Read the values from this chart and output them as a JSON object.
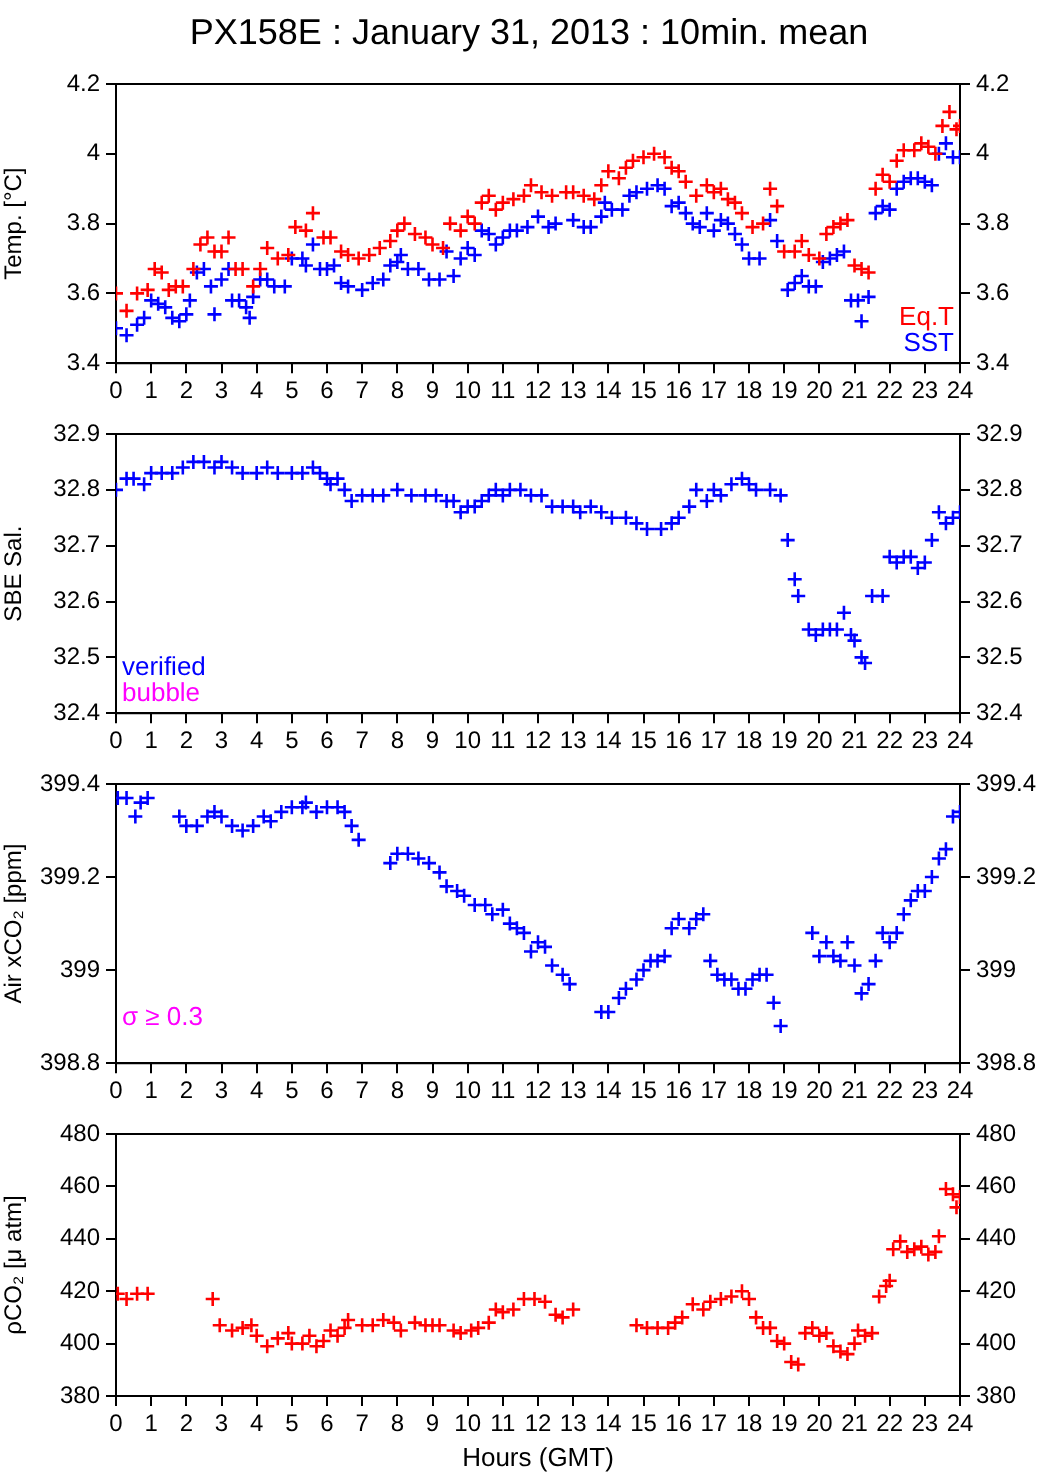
{
  "chart_data": [
    {
      "type": "scatter",
      "title": "PX158E : January 31, 2013 : 10min. mean",
      "ylabel": "Temp. [°C]",
      "xlim": [
        0,
        24
      ],
      "xticks": [
        0,
        1,
        2,
        3,
        4,
        5,
        6,
        7,
        8,
        9,
        10,
        11,
        12,
        13,
        14,
        15,
        16,
        17,
        18,
        19,
        20,
        21,
        22,
        23,
        24
      ],
      "ylim": [
        3.4,
        4.2
      ],
      "yticks": [
        3.4,
        3.6,
        3.8,
        4,
        4.2
      ],
      "y2lim": [
        3.4,
        4.2
      ],
      "y2ticks": [
        3.4,
        3.6,
        3.8,
        4,
        4.2
      ],
      "legend": "bottom right",
      "marker": "cross",
      "grid": false,
      "series": [
        {
          "name": "Eq.T",
          "color": "#ff0000",
          "x": [
            0,
            0.3,
            0.6,
            0.9,
            1.1,
            1.3,
            1.5,
            1.7,
            1.9,
            2.2,
            2.4,
            2.6,
            2.8,
            3,
            3.2,
            3.4,
            3.6,
            3.9,
            4.1,
            4.3,
            4.6,
            4.9,
            5.1,
            5.4,
            5.6,
            5.9,
            6.1,
            6.4,
            6.6,
            6.9,
            7.2,
            7.5,
            7.8,
            8,
            8.2,
            8.5,
            8.8,
            9,
            9.3,
            9.5,
            9.8,
            10,
            10.2,
            10.4,
            10.6,
            10.8,
            11,
            11.3,
            11.6,
            11.8,
            12.1,
            12.4,
            12.8,
            13,
            13.3,
            13.6,
            13.8,
            14,
            14.3,
            14.5,
            14.7,
            15,
            15.3,
            15.6,
            15.8,
            16,
            16.2,
            16.5,
            16.8,
            17,
            17.2,
            17.4,
            17.6,
            17.8,
            18.1,
            18.4,
            18.6,
            18.8,
            19,
            19.3,
            19.5,
            19.7,
            20,
            20.2,
            20.4,
            20.6,
            20.8,
            21,
            21.2,
            21.4,
            21.6,
            21.8,
            22,
            22.2,
            22.4,
            22.7,
            22.9,
            23.1,
            23.3,
            23.5,
            23.7,
            23.9,
            24
          ],
          "values": [
            3.6,
            3.55,
            3.6,
            3.61,
            3.67,
            3.66,
            3.61,
            3.62,
            3.62,
            3.67,
            3.74,
            3.76,
            3.72,
            3.72,
            3.76,
            3.67,
            3.67,
            3.62,
            3.67,
            3.73,
            3.7,
            3.71,
            3.79,
            3.78,
            3.83,
            3.76,
            3.76,
            3.72,
            3.71,
            3.7,
            3.71,
            3.73,
            3.75,
            3.78,
            3.8,
            3.77,
            3.76,
            3.74,
            3.73,
            3.8,
            3.78,
            3.82,
            3.8,
            3.86,
            3.88,
            3.84,
            3.86,
            3.87,
            3.88,
            3.91,
            3.89,
            3.88,
            3.89,
            3.89,
            3.88,
            3.87,
            3.91,
            3.95,
            3.93,
            3.96,
            3.98,
            3.99,
            4,
            3.99,
            3.96,
            3.95,
            3.92,
            3.88,
            3.91,
            3.89,
            3.9,
            3.87,
            3.86,
            3.83,
            3.79,
            3.8,
            3.9,
            3.85,
            3.72,
            3.72,
            3.75,
            3.71,
            3.7,
            3.77,
            3.79,
            3.8,
            3.81,
            3.68,
            3.67,
            3.66,
            3.9,
            3.94,
            3.92,
            3.98,
            4.01,
            4.01,
            4.03,
            4.02,
            4,
            4.08,
            4.12,
            4.07,
            4.08
          ]
        },
        {
          "name": "SST",
          "color": "#0000ff",
          "x": [
            0,
            0.3,
            0.6,
            0.8,
            1,
            1.2,
            1.4,
            1.6,
            1.8,
            2,
            2.1,
            2.3,
            2.5,
            2.7,
            2.8,
            3,
            3.2,
            3.3,
            3.5,
            3.7,
            3.8,
            3.9,
            4.1,
            4.3,
            4.5,
            4.8,
            5,
            5.3,
            5.4,
            5.6,
            5.8,
            6,
            6.2,
            6.4,
            6.6,
            7,
            7.3,
            7.6,
            7.8,
            8,
            8.1,
            8.3,
            8.6,
            8.9,
            9.2,
            9.4,
            9.6,
            9.8,
            10,
            10.2,
            10.4,
            10.6,
            10.8,
            11,
            11.2,
            11.4,
            11.7,
            12,
            12.3,
            12.5,
            13,
            13.3,
            13.5,
            13.8,
            13.9,
            14.1,
            14.4,
            14.6,
            14.8,
            15.1,
            15.4,
            15.6,
            15.8,
            16,
            16.2,
            16.4,
            16.6,
            16.8,
            17,
            17.2,
            17.4,
            17.6,
            17.8,
            18,
            18.3,
            18.6,
            18.8,
            19.1,
            19.3,
            19.5,
            19.7,
            19.9,
            20.1,
            20.3,
            20.5,
            20.7,
            20.9,
            21.1,
            21.2,
            21.4,
            21.6,
            21.8,
            22,
            22.2,
            22.4,
            22.6,
            22.8,
            23,
            23.2,
            23.4,
            23.6,
            23.8,
            24
          ],
          "values": [
            3.5,
            3.48,
            3.51,
            3.53,
            3.58,
            3.57,
            3.56,
            3.53,
            3.52,
            3.54,
            3.58,
            3.66,
            3.67,
            3.62,
            3.54,
            3.64,
            3.67,
            3.58,
            3.58,
            3.56,
            3.53,
            3.59,
            3.64,
            3.64,
            3.62,
            3.62,
            3.7,
            3.7,
            3.68,
            3.74,
            3.67,
            3.67,
            3.68,
            3.63,
            3.62,
            3.61,
            3.63,
            3.64,
            3.68,
            3.69,
            3.71,
            3.67,
            3.67,
            3.64,
            3.64,
            3.72,
            3.65,
            3.7,
            3.73,
            3.71,
            3.78,
            3.77,
            3.74,
            3.76,
            3.78,
            3.78,
            3.79,
            3.82,
            3.79,
            3.8,
            3.81,
            3.79,
            3.79,
            3.82,
            3.86,
            3.84,
            3.84,
            3.88,
            3.89,
            3.9,
            3.91,
            3.9,
            3.85,
            3.86,
            3.83,
            3.8,
            3.79,
            3.83,
            3.78,
            3.81,
            3.8,
            3.77,
            3.74,
            3.7,
            3.7,
            3.81,
            3.75,
            3.61,
            3.63,
            3.65,
            3.62,
            3.62,
            3.69,
            3.7,
            3.71,
            3.72,
            3.58,
            3.58,
            3.52,
            3.59,
            3.83,
            3.85,
            3.84,
            3.9,
            3.92,
            3.93,
            3.93,
            3.92,
            3.91,
            4,
            4.03,
            3.99,
            3.99
          ]
        }
      ]
    },
    {
      "type": "scatter",
      "ylabel": "SBE Sal.",
      "xlim": [
        0,
        24
      ],
      "xticks": [
        0,
        1,
        2,
        3,
        4,
        5,
        6,
        7,
        8,
        9,
        10,
        11,
        12,
        13,
        14,
        15,
        16,
        17,
        18,
        19,
        20,
        21,
        22,
        23,
        24
      ],
      "ylim": [
        32.4,
        32.9
      ],
      "yticks": [
        32.4,
        32.5,
        32.6,
        32.7,
        32.8,
        32.9
      ],
      "y2lim": [
        32.4,
        32.9
      ],
      "y2ticks": [
        32.4,
        32.5,
        32.6,
        32.7,
        32.8,
        32.9
      ],
      "legend": "bottom left",
      "marker": "cross",
      "grid": false,
      "series": [
        {
          "name": "verified",
          "color": "#0000ff",
          "x": [
            0,
            0.3,
            0.5,
            0.8,
            1,
            1.3,
            1.6,
            1.9,
            2.2,
            2.5,
            2.8,
            3,
            3.3,
            3.6,
            4,
            4.3,
            4.6,
            5,
            5.3,
            5.6,
            5.8,
            6,
            6.1,
            6.3,
            6.5,
            6.7,
            7,
            7.3,
            7.6,
            8,
            8.4,
            8.8,
            9.1,
            9.4,
            9.6,
            9.8,
            10,
            10.2,
            10.4,
            10.6,
            10.8,
            11,
            11.2,
            11.5,
            11.8,
            12.1,
            12.4,
            12.7,
            13,
            13.2,
            13.5,
            13.8,
            14.1,
            14.5,
            14.8,
            15.1,
            15.5,
            15.8,
            16,
            16.3,
            16.5,
            16.8,
            17,
            17.2,
            17.5,
            17.8,
            18,
            18.2,
            18.6,
            18.9,
            19.1,
            19.3,
            19.4,
            19.7,
            19.9,
            20.1,
            20.3,
            20.5,
            20.7,
            20.9,
            21,
            21.2,
            21.3,
            21.5,
            21.8,
            22,
            22.2,
            22.4,
            22.6,
            22.8,
            23,
            23.2,
            23.4,
            23.6,
            23.8,
            24
          ],
          "values": [
            32.8,
            32.82,
            32.82,
            32.81,
            32.83,
            32.83,
            32.83,
            32.84,
            32.85,
            32.85,
            32.84,
            32.85,
            32.84,
            32.83,
            32.83,
            32.84,
            32.83,
            32.83,
            32.83,
            32.84,
            32.83,
            32.82,
            32.81,
            32.82,
            32.8,
            32.78,
            32.79,
            32.79,
            32.79,
            32.8,
            32.79,
            32.79,
            32.79,
            32.78,
            32.78,
            32.76,
            32.77,
            32.77,
            32.78,
            32.79,
            32.8,
            32.79,
            32.8,
            32.8,
            32.79,
            32.79,
            32.77,
            32.77,
            32.77,
            32.76,
            32.77,
            32.76,
            32.75,
            32.75,
            32.74,
            32.73,
            32.73,
            32.74,
            32.75,
            32.77,
            32.8,
            32.78,
            32.8,
            32.79,
            32.81,
            32.82,
            32.81,
            32.8,
            32.8,
            32.79,
            32.71,
            32.64,
            32.61,
            32.55,
            32.54,
            32.55,
            32.55,
            32.55,
            32.58,
            32.54,
            32.53,
            32.5,
            32.49,
            32.61,
            32.61,
            32.68,
            32.67,
            32.68,
            32.68,
            32.66,
            32.67,
            32.71,
            32.76,
            32.74,
            32.75,
            32.76
          ]
        },
        {
          "name": "bubble",
          "color": "#ff00ff"
        }
      ]
    },
    {
      "type": "scatter",
      "ylabel": "Air xCO₂ [ppm]",
      "xlim": [
        0,
        24
      ],
      "xticks": [
        0,
        1,
        2,
        3,
        4,
        5,
        6,
        7,
        8,
        9,
        10,
        11,
        12,
        13,
        14,
        15,
        16,
        17,
        18,
        19,
        20,
        21,
        22,
        23,
        24
      ],
      "ylim": [
        398.8,
        399.4
      ],
      "yticks": [
        398.8,
        399,
        399.2,
        399.4
      ],
      "y2lim": [
        398.8,
        399.4
      ],
      "y2ticks": [
        398.8,
        399,
        399.2,
        399.4
      ],
      "annotations": [
        "σ ≥ 0.3"
      ],
      "marker": "cross",
      "grid": false,
      "series": [
        {
          "color": "#0000ff",
          "x": [
            0.05,
            0.3,
            0.55,
            0.7,
            0.9,
            1.8,
            2,
            2.3,
            2.6,
            2.8,
            3,
            3.3,
            3.6,
            3.9,
            4.2,
            4.4,
            4.7,
            5,
            5.3,
            5.4,
            5.7,
            6,
            6.3,
            6.5,
            6.7,
            6.9,
            7.8,
            8,
            8.3,
            8.6,
            8.9,
            9.2,
            9.4,
            9.7,
            9.9,
            10.2,
            10.5,
            10.7,
            11,
            11.2,
            11.4,
            11.6,
            11.8,
            12,
            12.2,
            12.4,
            12.7,
            12.9,
            13.8,
            14,
            14.3,
            14.5,
            14.8,
            15,
            15.2,
            15.4,
            15.6,
            15.8,
            16,
            16.3,
            16.5,
            16.7,
            16.9,
            17.1,
            17.3,
            17.5,
            17.7,
            17.9,
            18.1,
            18.3,
            18.5,
            18.7,
            18.9,
            19.8,
            20,
            20.2,
            20.4,
            20.6,
            20.8,
            21,
            21.2,
            21.4,
            21.6,
            21.8,
            22,
            22.2,
            22.4,
            22.6,
            22.8,
            23,
            23.2,
            23.4,
            23.6,
            23.8,
            24
          ],
          "values": [
            399.37,
            399.37,
            399.33,
            399.36,
            399.37,
            399.33,
            399.31,
            399.31,
            399.33,
            399.34,
            399.33,
            399.31,
            399.3,
            399.31,
            399.33,
            399.32,
            399.34,
            399.35,
            399.35,
            399.36,
            399.34,
            399.35,
            399.35,
            399.34,
            399.31,
            399.28,
            399.23,
            399.25,
            399.25,
            399.24,
            399.23,
            399.21,
            399.18,
            399.17,
            399.16,
            399.14,
            399.14,
            399.12,
            399.13,
            399.1,
            399.09,
            399.08,
            399.04,
            399.06,
            399.05,
            399.01,
            398.99,
            398.97,
            398.91,
            398.91,
            398.94,
            398.96,
            398.98,
            399,
            399.02,
            399.02,
            399.03,
            399.09,
            399.11,
            399.09,
            399.11,
            399.12,
            399.02,
            398.99,
            398.98,
            398.98,
            398.96,
            398.96,
            398.98,
            398.99,
            398.99,
            398.93,
            398.88,
            399.08,
            399.03,
            399.06,
            399.03,
            399.02,
            399.06,
            399.01,
            398.95,
            398.97,
            399.02,
            399.08,
            399.06,
            399.08,
            399.12,
            399.15,
            399.17,
            399.17,
            399.2,
            399.24,
            399.26,
            399.33,
            399.34
          ]
        }
      ]
    },
    {
      "type": "scatter",
      "xlabel": "Hours (GMT)",
      "ylabel": "ρCO₂ [μ atm]",
      "xlim": [
        0,
        24
      ],
      "xticks": [
        0,
        1,
        2,
        3,
        4,
        5,
        6,
        7,
        8,
        9,
        10,
        11,
        12,
        13,
        14,
        15,
        16,
        17,
        18,
        19,
        20,
        21,
        22,
        23,
        24
      ],
      "ylim": [
        380,
        480
      ],
      "yticks": [
        380,
        400,
        420,
        440,
        460,
        480
      ],
      "y2lim": [
        380,
        480
      ],
      "y2ticks": [
        380,
        400,
        420,
        440,
        460,
        480
      ],
      "marker": "cross",
      "grid": false,
      "series": [
        {
          "color": "#ff0000",
          "x": [
            0.05,
            0.3,
            0.6,
            0.9,
            2.75,
            2.95,
            3.3,
            3.6,
            3.85,
            4,
            4.3,
            4.6,
            4.9,
            5,
            5.3,
            5.5,
            5.7,
            5.9,
            6.1,
            6.3,
            6.5,
            6.6,
            7,
            7.3,
            7.6,
            7.9,
            8.1,
            8.5,
            8.8,
            9,
            9.2,
            9.6,
            9.8,
            10.1,
            10.3,
            10.6,
            10.8,
            11,
            11.3,
            11.6,
            11.9,
            12.2,
            12.5,
            12.7,
            13,
            14.8,
            15.1,
            15.4,
            15.7,
            15.9,
            16.1,
            16.4,
            16.7,
            16.9,
            17.2,
            17.5,
            17.8,
            18,
            18.2,
            18.4,
            18.6,
            18.8,
            19,
            19.2,
            19.4,
            19.6,
            19.8,
            20,
            20.2,
            20.4,
            20.6,
            20.8,
            21,
            21.1,
            21.3,
            21.5,
            21.7,
            21.9,
            22,
            22.1,
            22.3,
            22.5,
            22.7,
            22.9,
            23.1,
            23.3,
            23.4,
            23.6,
            23.8,
            23.9,
            24
          ],
          "values": [
            419,
            417,
            419,
            419,
            417,
            407,
            405,
            406,
            407,
            403,
            399,
            402,
            404,
            400,
            400,
            403,
            399,
            401,
            405,
            403,
            406,
            409,
            407,
            407,
            409,
            408,
            405,
            408,
            407,
            407,
            407,
            405,
            404,
            405,
            406,
            408,
            413,
            412,
            413,
            417,
            417,
            416,
            411,
            410,
            413,
            407,
            406,
            406,
            406,
            408,
            410,
            415,
            413,
            416,
            417,
            418,
            420,
            417,
            410,
            406,
            406,
            401,
            400,
            393,
            392,
            404,
            406,
            403,
            404,
            399,
            397,
            396,
            400,
            405,
            403,
            404,
            418,
            422,
            424,
            436,
            439,
            435,
            436,
            437,
            434,
            435,
            441,
            459,
            457,
            452,
            456
          ]
        }
      ]
    }
  ]
}
